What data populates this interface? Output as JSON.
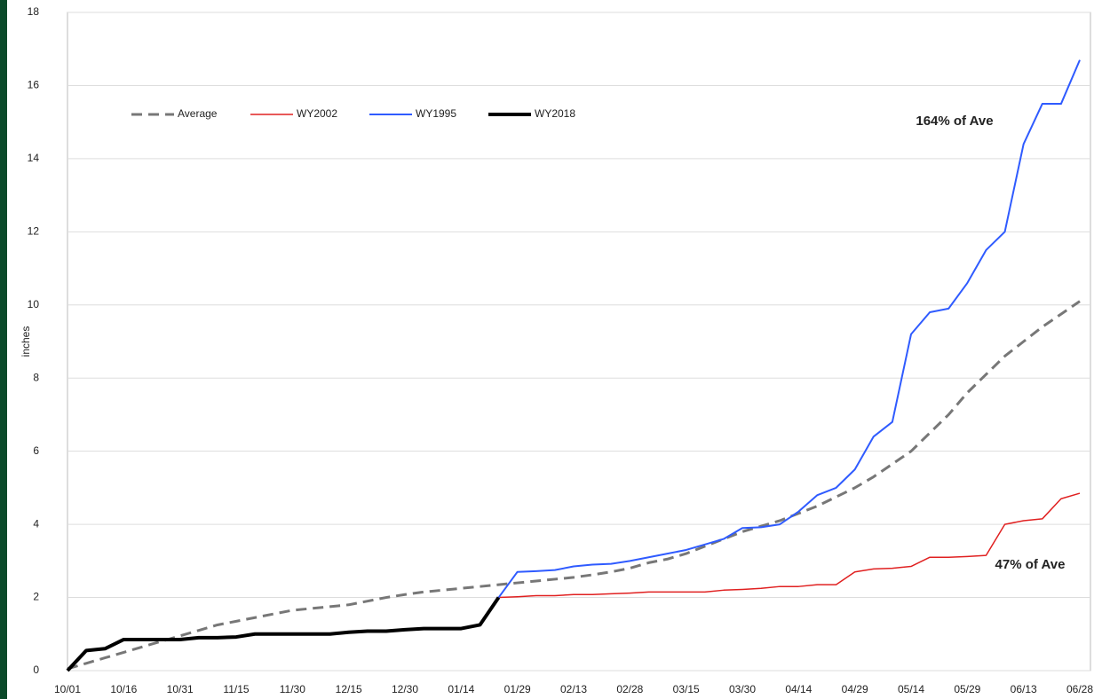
{
  "chart_data": {
    "type": "line",
    "y_label": "inches",
    "categories": [
      "10/01",
      null,
      null,
      "10/16",
      null,
      null,
      "10/31",
      null,
      null,
      "11/15",
      null,
      null,
      "11/30",
      null,
      null,
      "12/15",
      null,
      null,
      "12/30",
      null,
      null,
      "01/14",
      null,
      null,
      "01/29",
      null,
      null,
      "02/13",
      null,
      null,
      "02/28",
      null,
      null,
      "03/15",
      null,
      null,
      "03/30",
      null,
      null,
      "04/14",
      null,
      null,
      "04/29",
      null,
      null,
      "05/14",
      null,
      null,
      "05/29",
      null,
      null,
      "06/13",
      null,
      null,
      "06/28"
    ],
    "series": [
      {
        "name": "Average",
        "color": "#777777",
        "dashed": true,
        "line_width": 3,
        "values": [
          0.05,
          0.2,
          0.35,
          0.5,
          0.65,
          0.8,
          0.95,
          1.1,
          1.25,
          1.35,
          1.45,
          1.55,
          1.65,
          1.7,
          1.75,
          1.8,
          1.9,
          2.0,
          2.08,
          2.15,
          2.2,
          2.25,
          2.3,
          2.35,
          2.4,
          2.45,
          2.5,
          2.55,
          2.62,
          2.7,
          2.8,
          2.95,
          3.05,
          3.2,
          3.4,
          3.6,
          3.8,
          3.95,
          4.1,
          4.3,
          4.5,
          4.75,
          5.0,
          5.3,
          5.65,
          6.0,
          6.5,
          7.0,
          7.6,
          8.1,
          8.6,
          9.0,
          9.4,
          9.75,
          10.1
        ]
      },
      {
        "name": "WY2002",
        "color": "#e02020",
        "line_width": 1.5,
        "values": [
          null,
          null,
          null,
          null,
          null,
          null,
          null,
          null,
          null,
          null,
          null,
          null,
          null,
          null,
          null,
          null,
          null,
          null,
          null,
          null,
          null,
          null,
          null,
          2.0,
          2.02,
          2.05,
          2.05,
          2.08,
          2.08,
          2.1,
          2.12,
          2.15,
          2.15,
          2.15,
          2.15,
          2.2,
          2.22,
          2.25,
          2.3,
          2.3,
          2.35,
          2.35,
          2.7,
          2.78,
          2.8,
          2.85,
          3.1,
          3.1,
          3.12,
          3.15,
          4.0,
          4.1,
          4.15,
          4.7,
          4.85
        ]
      },
      {
        "name": "WY1995",
        "color": "#2f5bff",
        "line_width": 2,
        "values": [
          null,
          null,
          null,
          null,
          null,
          null,
          null,
          null,
          null,
          null,
          null,
          null,
          null,
          null,
          null,
          null,
          null,
          null,
          null,
          null,
          null,
          null,
          null,
          2.0,
          2.7,
          2.72,
          2.75,
          2.85,
          2.9,
          2.92,
          3.0,
          3.1,
          3.2,
          3.3,
          3.45,
          3.6,
          3.9,
          3.92,
          4.0,
          4.35,
          4.8,
          5.0,
          5.5,
          6.4,
          6.8,
          9.2,
          9.8,
          9.9,
          10.6,
          11.5,
          12.0,
          14.4,
          15.5,
          15.5,
          16.7
        ]
      },
      {
        "name": "WY2018",
        "color": "#000000",
        "line_width": 4,
        "values": [
          0,
          0.55,
          0.6,
          0.85,
          0.85,
          0.85,
          0.85,
          0.9,
          0.9,
          0.92,
          1.0,
          1.0,
          1.0,
          1.0,
          1.0,
          1.05,
          1.08,
          1.08,
          1.12,
          1.15,
          1.15,
          1.15,
          1.25,
          2.0,
          null,
          null,
          null,
          null,
          null,
          null,
          null,
          null,
          null,
          null,
          null,
          null,
          null,
          null,
          null,
          null,
          null,
          null,
          null,
          null,
          null,
          null,
          null,
          null,
          null,
          null,
          null,
          null,
          null,
          null,
          null
        ]
      }
    ],
    "annotations": [
      "164% of Ave",
      "47% of Ave"
    ],
    "ylim": [
      0,
      18
    ],
    "yticks": [
      0,
      2,
      4,
      6,
      8,
      10,
      12,
      14,
      16,
      18
    ],
    "grid": true,
    "legend": "top-left"
  }
}
